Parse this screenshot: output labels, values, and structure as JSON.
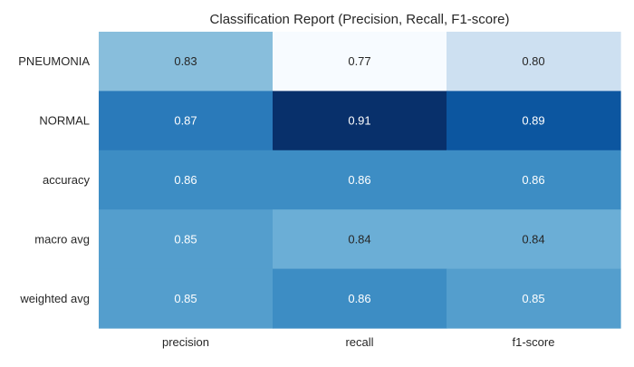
{
  "chart_data": {
    "type": "heatmap",
    "title": "Classification Report (Precision, Recall, F1-score)",
    "xlabel": "",
    "ylabel": "",
    "columns": [
      "precision",
      "recall",
      "f1-score"
    ],
    "rows": [
      "PNEUMONIA",
      "NORMAL",
      "accuracy",
      "macro avg",
      "weighted avg"
    ],
    "values": [
      [
        0.83,
        0.77,
        0.8
      ],
      [
        0.87,
        0.91,
        0.89
      ],
      [
        0.86,
        0.86,
        0.86
      ],
      [
        0.85,
        0.84,
        0.84
      ],
      [
        0.85,
        0.86,
        0.85
      ]
    ],
    "value_range": [
      0.77,
      0.91
    ],
    "colormap": "Blues",
    "grid": false,
    "legend": "none"
  }
}
